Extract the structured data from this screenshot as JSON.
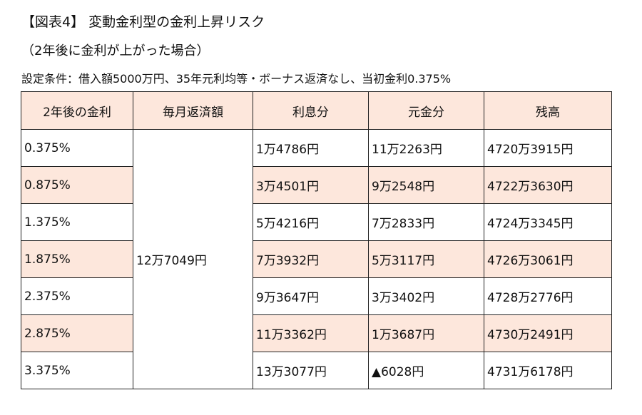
{
  "document": {
    "title": "【図表4】 変動金利型の金利上昇リスク",
    "subtitle": "（2年後に金利が上がった場合）",
    "conditions": "設定条件：借入額5000万円、35年元利均等・ボーナス返済なし、当初金利0.375%"
  },
  "table": {
    "headers": [
      "2年後の金利",
      "毎月返済額",
      "利息分",
      "元金分",
      "残高"
    ],
    "monthly_payment": "12万7049円",
    "rows": [
      {
        "rate": "0.375%",
        "interest": "1万4786円",
        "principal": "11万2263円",
        "balance": "4720万3915円"
      },
      {
        "rate": "0.875%",
        "interest": "3万4501円",
        "principal": "9万2548円",
        "balance": "4722万3630円"
      },
      {
        "rate": "1.375%",
        "interest": "5万4216円",
        "principal": "7万2833円",
        "balance": "4724万3345円"
      },
      {
        "rate": "1.875%",
        "interest": "7万3932円",
        "principal": "5万3117円",
        "balance": "4726万3061円"
      },
      {
        "rate": "2.375%",
        "interest": "9万3647円",
        "principal": "3万3402円",
        "balance": "4728万2776円"
      },
      {
        "rate": "2.875%",
        "interest": "11万3362円",
        "principal": "1万3687円",
        "balance": "4730万2491円"
      },
      {
        "rate": "3.375%",
        "interest": "13万3077円",
        "principal": "▲6028円",
        "balance": "4731万6178円"
      }
    ]
  },
  "colors": {
    "header_fill": "#fde7dc",
    "row_shade": "#fde7dc",
    "border": "#222222"
  }
}
